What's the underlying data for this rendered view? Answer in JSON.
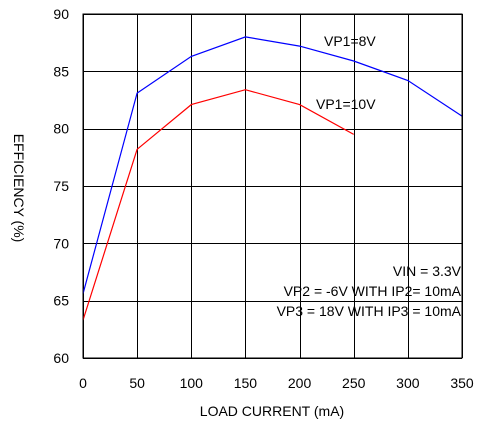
{
  "chart_data": {
    "type": "line",
    "xlabel": "LOAD CURRENT (mA)",
    "ylabel": "EFFICIENCY (%)",
    "xlim": [
      0,
      350
    ],
    "ylim": [
      60,
      90
    ],
    "xticks": [
      0,
      50,
      100,
      150,
      200,
      250,
      300,
      350
    ],
    "yticks": [
      60,
      65,
      70,
      75,
      80,
      85,
      90
    ],
    "grid": true,
    "series": [
      {
        "name": "VP1=8V",
        "color": "#0000ff",
        "x": [
          0,
          50,
          100,
          150,
          200,
          250,
          300,
          350
        ],
        "y": [
          65.6,
          83.1,
          86.3,
          88.0,
          87.2,
          85.9,
          84.2,
          81.1
        ]
      },
      {
        "name": "VP1=10V",
        "color": "#ff0000",
        "x": [
          0,
          50,
          100,
          150,
          200,
          250
        ],
        "y": [
          63.3,
          78.2,
          82.1,
          83.4,
          82.1,
          79.5
        ]
      }
    ],
    "annotations": [
      "VIN = 3.3V",
      "VP2 = -6V WITH IP2= 10mA",
      "VP3 = 18V WITH IP3 = 10mA"
    ]
  }
}
